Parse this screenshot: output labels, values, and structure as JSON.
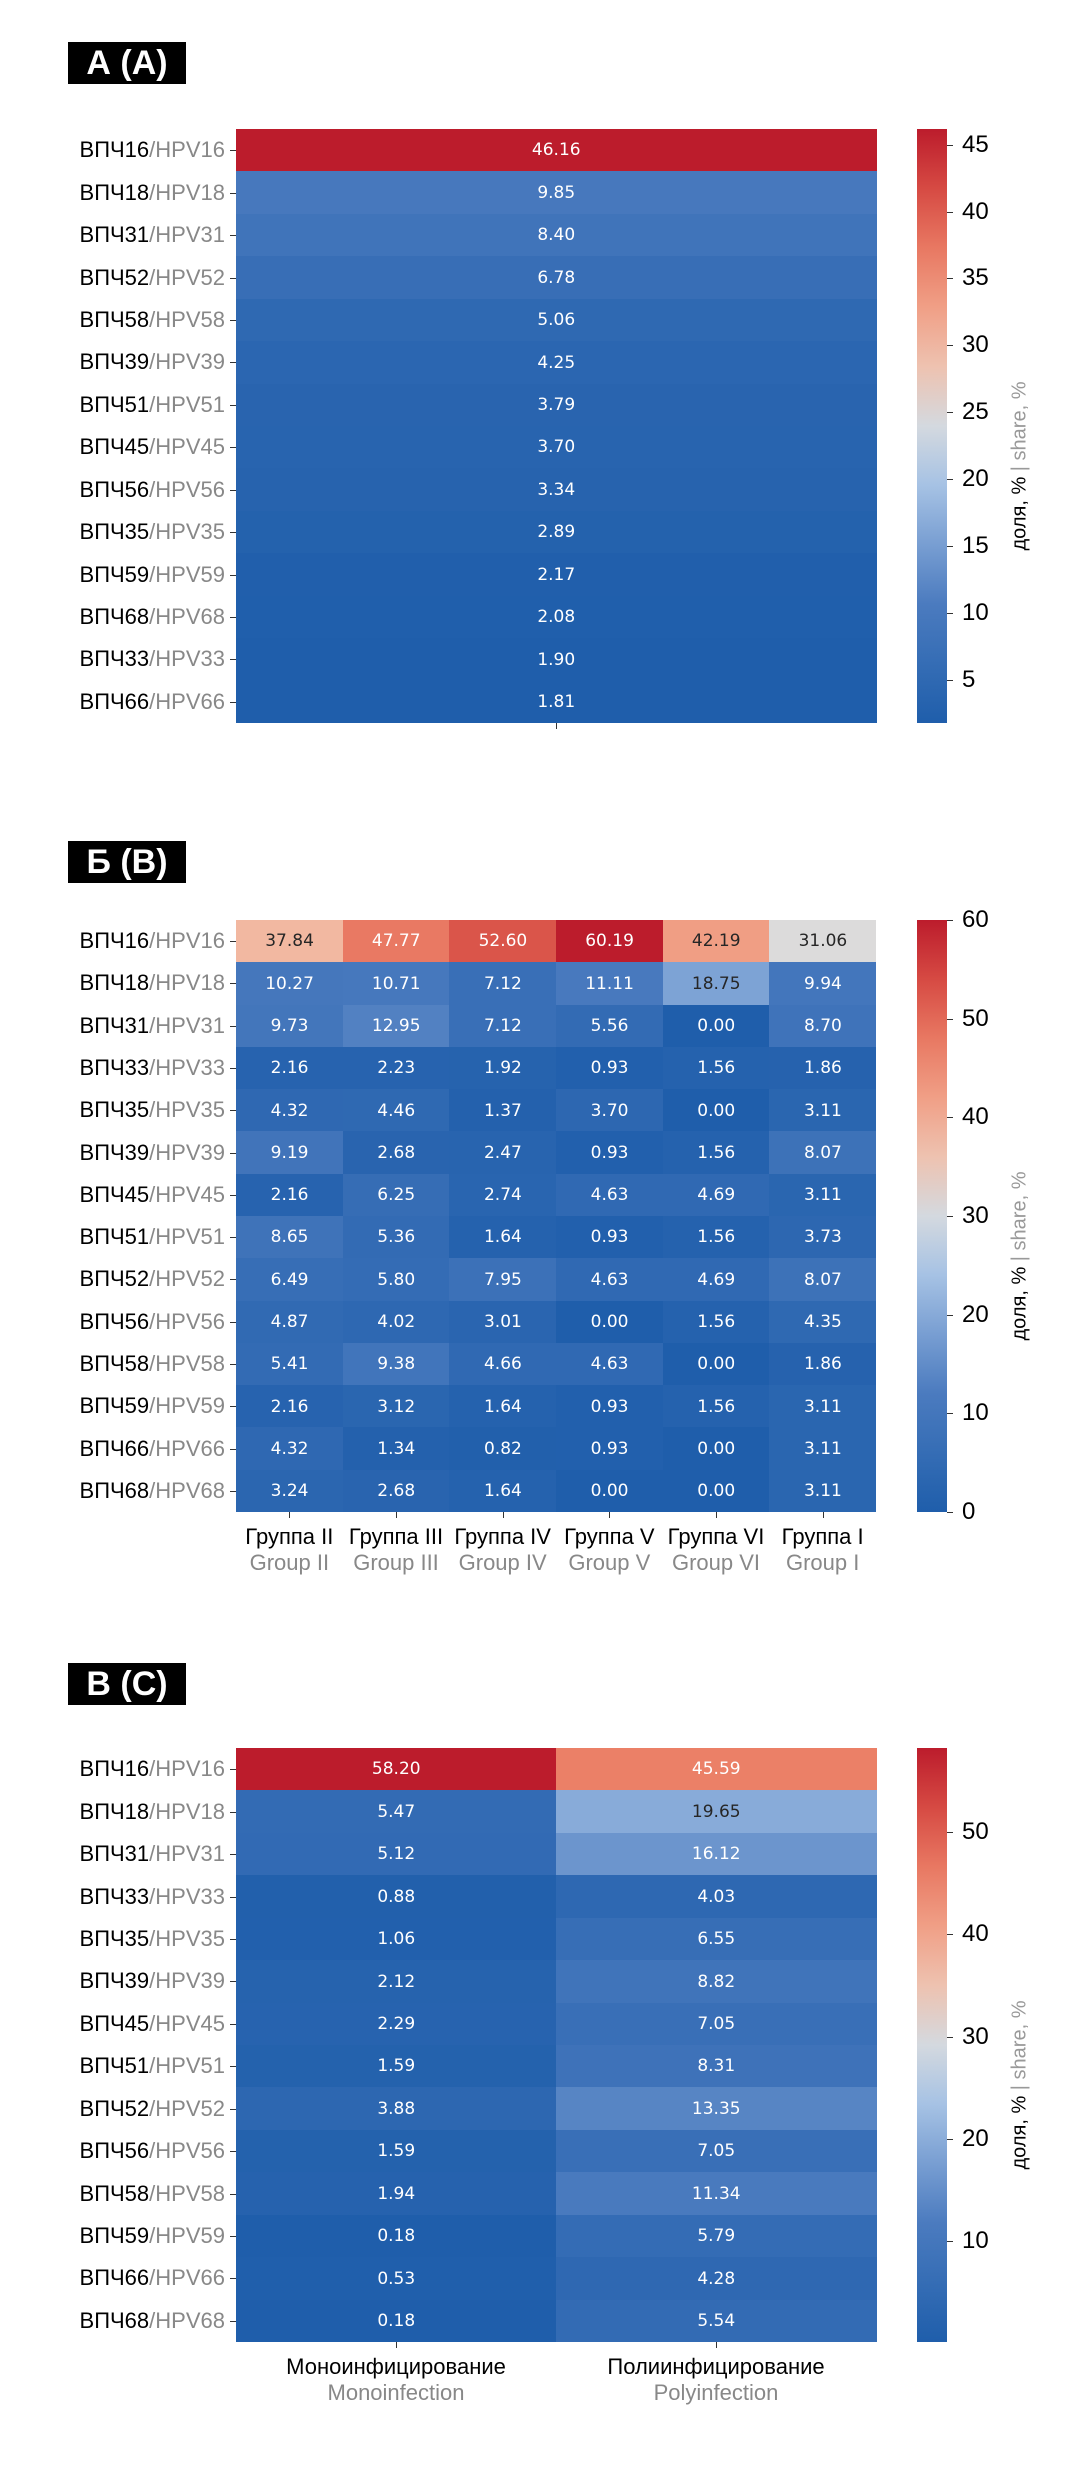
{
  "colorbar_label_ru": "доля, %",
  "colorbar_label_sep": " | ",
  "colorbar_label_en": "share, %",
  "chart_data": [
    {
      "type": "heatmap",
      "title": "А (A)",
      "rows_ru": [
        "ВПЧ16",
        "ВПЧ18",
        "ВПЧ31",
        "ВПЧ52",
        "ВПЧ58",
        "ВПЧ39",
        "ВПЧ51",
        "ВПЧ45",
        "ВПЧ56",
        "ВПЧ35",
        "ВПЧ59",
        "ВПЧ68",
        "ВПЧ33",
        "ВПЧ66"
      ],
      "rows_en": [
        "HPV16",
        "HPV18",
        "HPV31",
        "HPV52",
        "HPV58",
        "HPV39",
        "HPV51",
        "HPV45",
        "HPV56",
        "HPV35",
        "HPV59",
        "HPV68",
        "HPV33",
        "HPV66"
      ],
      "columns_ru": [
        ""
      ],
      "columns_en": [
        ""
      ],
      "values": [
        [
          46.16
        ],
        [
          9.85
        ],
        [
          8.4
        ],
        [
          6.78
        ],
        [
          5.06
        ],
        [
          4.25
        ],
        [
          3.79
        ],
        [
          3.7
        ],
        [
          3.34
        ],
        [
          2.89
        ],
        [
          2.17
        ],
        [
          2.08
        ],
        [
          1.9
        ],
        [
          1.81
        ]
      ],
      "color_range": [
        1.81,
        46.16
      ],
      "colorbar_ticks": [
        5,
        10,
        15,
        20,
        25,
        30,
        35,
        40,
        45
      ]
    },
    {
      "type": "heatmap",
      "title": "Б (B)",
      "rows_ru": [
        "ВПЧ16",
        "ВПЧ18",
        "ВПЧ31",
        "ВПЧ33",
        "ВПЧ35",
        "ВПЧ39",
        "ВПЧ45",
        "ВПЧ51",
        "ВПЧ52",
        "ВПЧ56",
        "ВПЧ58",
        "ВПЧ59",
        "ВПЧ66",
        "ВПЧ68"
      ],
      "rows_en": [
        "HPV16",
        "HPV18",
        "HPV31",
        "HPV33",
        "HPV35",
        "HPV39",
        "HPV45",
        "HPV51",
        "HPV52",
        "HPV56",
        "HPV58",
        "HPV59",
        "HPV66",
        "HPV68"
      ],
      "columns_ru": [
        "Группа II",
        "Группа III",
        "Группа IV",
        "Группа V",
        "Группа VI",
        "Группа I"
      ],
      "columns_en": [
        "Group II",
        "Group III",
        "Group IV",
        "Group V",
        "Group VI",
        "Group I"
      ],
      "values": [
        [
          37.84,
          47.77,
          52.6,
          60.19,
          42.19,
          31.06
        ],
        [
          10.27,
          10.71,
          7.12,
          11.11,
          18.75,
          9.94
        ],
        [
          9.73,
          12.95,
          7.12,
          5.56,
          0.0,
          8.7
        ],
        [
          2.16,
          2.23,
          1.92,
          0.93,
          1.56,
          1.86
        ],
        [
          4.32,
          4.46,
          1.37,
          3.7,
          0.0,
          3.11
        ],
        [
          9.19,
          2.68,
          2.47,
          0.93,
          1.56,
          8.07
        ],
        [
          2.16,
          6.25,
          2.74,
          4.63,
          4.69,
          3.11
        ],
        [
          8.65,
          5.36,
          1.64,
          0.93,
          1.56,
          3.73
        ],
        [
          6.49,
          5.8,
          7.95,
          4.63,
          4.69,
          8.07
        ],
        [
          4.87,
          4.02,
          3.01,
          0.0,
          1.56,
          4.35
        ],
        [
          5.41,
          9.38,
          4.66,
          4.63,
          0.0,
          1.86
        ],
        [
          2.16,
          3.12,
          1.64,
          0.93,
          1.56,
          3.11
        ],
        [
          4.32,
          1.34,
          0.82,
          0.93,
          0.0,
          3.11
        ],
        [
          3.24,
          2.68,
          1.64,
          0.0,
          0.0,
          3.11
        ]
      ],
      "color_range": [
        0,
        60
      ],
      "colorbar_ticks": [
        0,
        10,
        20,
        30,
        40,
        50,
        60
      ]
    },
    {
      "type": "heatmap",
      "title": "В (C)",
      "rows_ru": [
        "ВПЧ16",
        "ВПЧ18",
        "ВПЧ31",
        "ВПЧ33",
        "ВПЧ35",
        "ВПЧ39",
        "ВПЧ45",
        "ВПЧ51",
        "ВПЧ52",
        "ВПЧ56",
        "ВПЧ58",
        "ВПЧ59",
        "ВПЧ66",
        "ВПЧ68"
      ],
      "rows_en": [
        "HPV16",
        "HPV18",
        "HPV31",
        "HPV33",
        "HPV35",
        "HPV39",
        "HPV45",
        "HPV51",
        "HPV52",
        "HPV56",
        "HPV58",
        "HPV59",
        "HPV66",
        "HPV68"
      ],
      "columns_ru": [
        "Моноинфицирование",
        "Полиинфицирование"
      ],
      "columns_en": [
        "Monoinfection",
        "Polyinfection"
      ],
      "values": [
        [
          58.2,
          45.59
        ],
        [
          5.47,
          19.65
        ],
        [
          5.12,
          16.12
        ],
        [
          0.88,
          4.03
        ],
        [
          1.06,
          6.55
        ],
        [
          2.12,
          8.82
        ],
        [
          2.29,
          7.05
        ],
        [
          1.59,
          8.31
        ],
        [
          3.88,
          13.35
        ],
        [
          1.59,
          7.05
        ],
        [
          1.94,
          11.34
        ],
        [
          0.18,
          5.79
        ],
        [
          0.53,
          4.28
        ],
        [
          0.18,
          5.54
        ]
      ],
      "color_range": [
        0.18,
        58.2
      ],
      "colorbar_ticks": [
        10,
        20,
        30,
        40,
        50
      ]
    }
  ]
}
